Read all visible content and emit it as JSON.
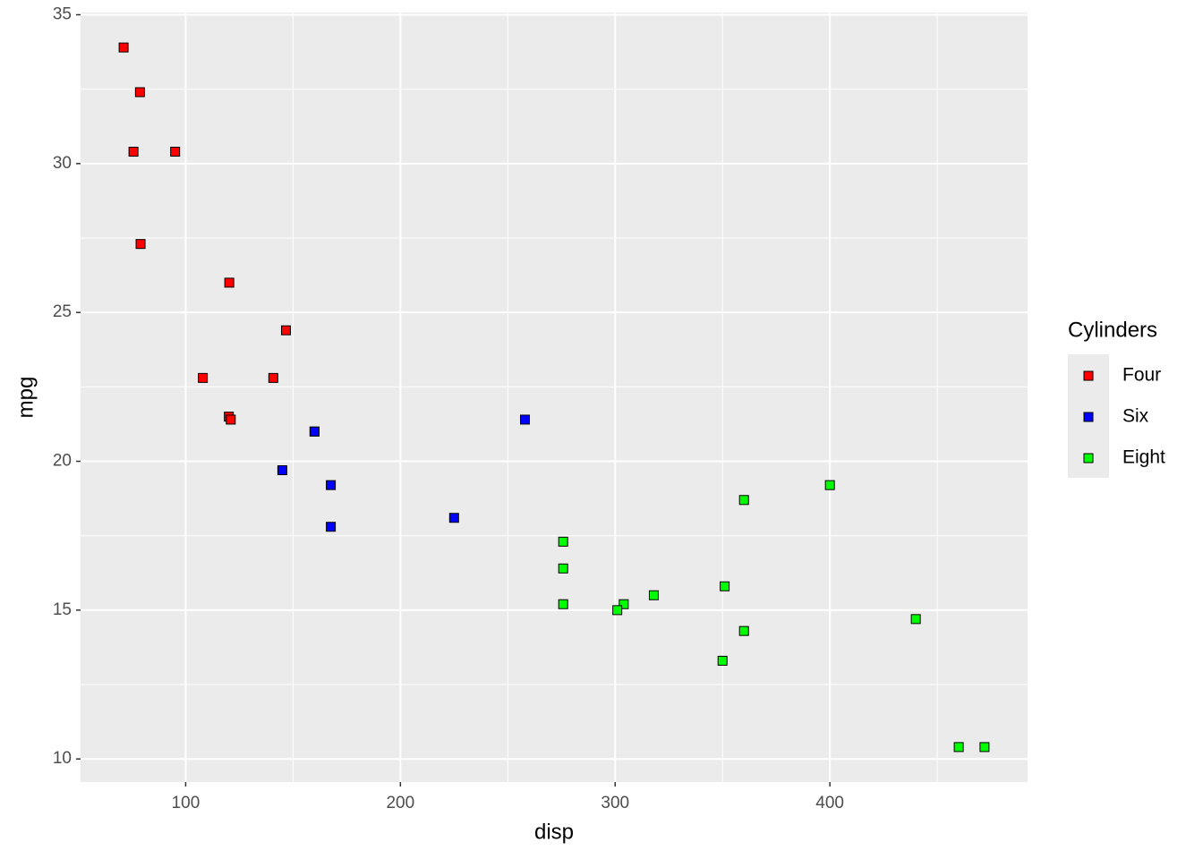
{
  "chart_data": {
    "type": "scatter",
    "xlabel": "disp",
    "ylabel": "mpg",
    "legend_title": "Cylinders",
    "legend": "right",
    "grid": true,
    "minor_grid": true,
    "xlim": [
      51.05,
      492.05
    ],
    "xticks": [
      100,
      200,
      300,
      400
    ],
    "ylim": [
      9.225,
      35.075
    ],
    "yticks": [
      10,
      15,
      20,
      25,
      30,
      35
    ],
    "series": [
      {
        "name": "Four",
        "color": "#ff0000",
        "x": [
          108,
          146.7,
          140.8,
          78.7,
          75.7,
          71.1,
          120.1,
          79,
          120.3,
          95.1,
          121
        ],
        "values": [
          22.8,
          24.4,
          22.8,
          32.4,
          30.4,
          33.9,
          21.5,
          27.3,
          26,
          30.4,
          21.4
        ]
      },
      {
        "name": "Six",
        "color": "#0000ff",
        "x": [
          160,
          160,
          258,
          225,
          167.6,
          167.6,
          145
        ],
        "values": [
          21,
          21,
          21.4,
          18.1,
          19.2,
          17.8,
          19.7
        ]
      },
      {
        "name": "Eight",
        "color": "#00ff00",
        "x": [
          360,
          360,
          275.8,
          275.8,
          275.8,
          472,
          460,
          440,
          318,
          304,
          350,
          400,
          351,
          301
        ],
        "values": [
          18.7,
          14.3,
          16.4,
          17.3,
          15.2,
          10.4,
          10.4,
          14.7,
          15.5,
          15.2,
          13.3,
          19.2,
          15.8,
          15
        ]
      }
    ]
  }
}
